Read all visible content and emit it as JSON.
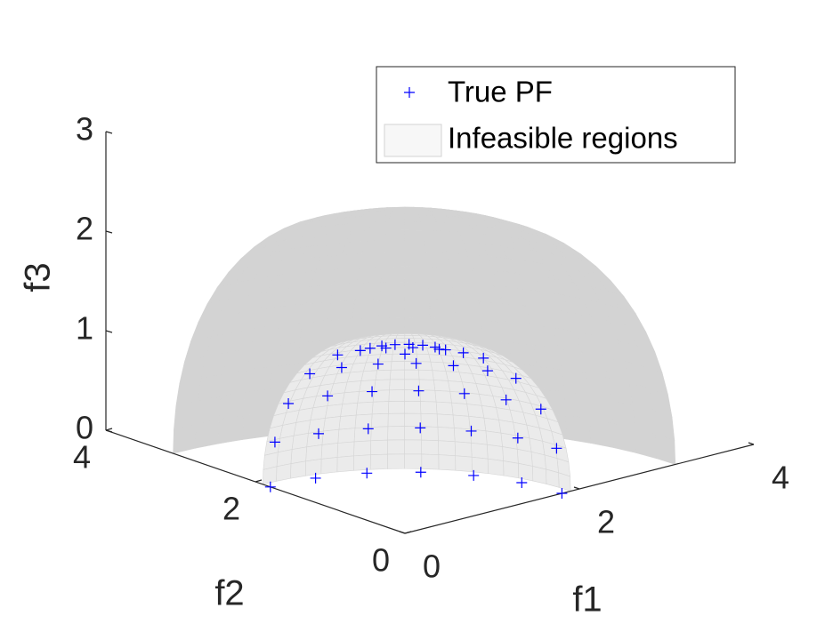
{
  "chart_data": {
    "type": "scatter3d",
    "xlabel": "f1",
    "ylabel": "f2",
    "zlabel": "f3",
    "xlim": [
      0,
      4
    ],
    "ylim": [
      0,
      4
    ],
    "zlim": [
      0,
      3
    ],
    "xticks": [
      0,
      2,
      4
    ],
    "yticks": [
      0,
      2,
      4
    ],
    "zticks": [
      0,
      1,
      2,
      3
    ],
    "grid": false,
    "legend": "northeast",
    "series": [
      {
        "name": "True PF",
        "color": "#0000ff",
        "marker": "+",
        "x": [
          0.466,
          0.45,
          0.404,
          0.33,
          0.233,
          0.121,
          0,
          0.9,
          0.869,
          0.779,
          0.636,
          0.45,
          0.233,
          0,
          1.273,
          1.23,
          1.102,
          0.9,
          0.637,
          0.329,
          0,
          1.559,
          1.506,
          1.35,
          1.102,
          0.78,
          0.404,
          0,
          1.739,
          1.68,
          1.506,
          1.23,
          0.87,
          0.45,
          0,
          1.8,
          1.739,
          1.559,
          1.273,
          0.9,
          0.466,
          0,
          0
        ],
        "y": [
          0,
          0.121,
          0.233,
          0.33,
          0.404,
          0.45,
          0.466,
          0,
          0.233,
          0.45,
          0.636,
          0.779,
          0.869,
          0.9,
          0,
          0.329,
          0.637,
          0.9,
          1.102,
          1.23,
          1.273,
          0,
          0.404,
          0.78,
          1.102,
          1.35,
          1.506,
          1.559,
          0,
          0.45,
          0.87,
          1.23,
          1.506,
          1.68,
          1.739,
          0,
          0.466,
          0.9,
          1.273,
          1.559,
          1.739,
          1.8,
          0
        ],
        "z": [
          1.739,
          1.739,
          1.739,
          1.739,
          1.739,
          1.739,
          1.739,
          1.559,
          1.559,
          1.559,
          1.559,
          1.559,
          1.559,
          1.559,
          1.273,
          1.273,
          1.273,
          1.273,
          1.273,
          1.273,
          1.273,
          0.9,
          0.9,
          0.9,
          0.9,
          0.9,
          0.9,
          0.9,
          0.466,
          0.466,
          0.466,
          0.466,
          0.466,
          0.466,
          0.466,
          0,
          0,
          0,
          0,
          0,
          0,
          0,
          1.8
        ]
      },
      {
        "name": "Infeasible regions",
        "color": "#d3d3d3",
        "marker": "surface",
        "radius_range": [
          1.9,
          3.1
        ]
      }
    ]
  }
}
